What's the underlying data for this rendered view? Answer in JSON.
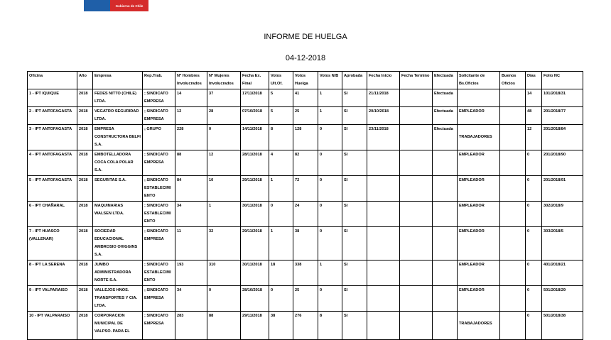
{
  "logo": {
    "text": "Gobierno de Chile",
    "colors": [
      "#1f5fa8",
      "#d52b2b"
    ]
  },
  "report": {
    "title": "INFORME DE HUELGA",
    "date": "04-12-2018"
  },
  "table": {
    "headers": [
      "Oficina",
      "Año",
      "Empresa",
      "Rep.Trab.",
      "Nº Hombres Involucrados",
      "Nº Mujeres Involucrados",
      "Fecha Ex. Final",
      "Votos Ult.Of.",
      "Votos Huelga",
      "Votos N/B",
      "Aprobada",
      "Fecha Inicio",
      "Fecha Termino",
      "Efectuada",
      "Solicitante de Bs.Oficios",
      "Buenos Oficios",
      "Días",
      "Folio NC"
    ],
    "rows": [
      [
        "1 - IPT IQUIQUE",
        "2018",
        "FEDES NITTO (CHILE) LTDA.",
        "; SINDICATO EMPRESA",
        "14",
        "37",
        "17/11/2018",
        "5",
        "41",
        "1",
        "SI",
        "21/11/2018",
        "",
        "Efectuada",
        "",
        "",
        "14",
        "101/2018/31"
      ],
      [
        "2 - IPT ANTOFAGASTA",
        "2018",
        "VEGATRO SEGURIDAD LTDA.",
        "; SINDICATO EMPRESA",
        "12",
        "28",
        "07/10/2018",
        "5",
        "25",
        "1",
        "SI",
        "20/10/2018",
        "",
        "Efectuada",
        "EMPLEADOR",
        "",
        "48",
        "201/2018/77"
      ],
      [
        "3 - IPT ANTOFAGASTA",
        "2018",
        "EMPRESA CONSTRUCTORA BELFI S.A.",
        "; GRUPO",
        "228",
        "0",
        "14/11/2018",
        "8",
        "128",
        "0",
        "SI",
        "23/11/2018",
        "",
        "Efectuada",
        "TRABAJADORES",
        "",
        "12",
        "201/2018/84"
      ],
      [
        "4 - IPT ANTOFAGASTA",
        "2018",
        "EMBOTELLADORA COCA COLA POLAR S.A.",
        "; SINDICATO EMPRESA",
        "88",
        "12",
        "28/11/2018",
        "4",
        "82",
        "0",
        "SI",
        "",
        "",
        "",
        "EMPLEADOR",
        "",
        "0",
        "201/2018/90"
      ],
      [
        "5 - IPT ANTOFAGASTA",
        "2018",
        "SEGURITAS S.A.",
        "; SINDICATO ESTABLECIMIENTO",
        "84",
        "10",
        "29/11/2018",
        "1",
        "72",
        "0",
        "SI",
        "",
        "",
        "",
        "EMPLEADOR",
        "",
        "0",
        "201/2018/91"
      ],
      [
        "6 - IPT CHAÑARAL",
        "2018",
        "MAQUINARIAS WALSEN LTDA.",
        "; SINDICATO ESTABLECIMIENTO",
        "34",
        "1",
        "30/11/2018",
        "0",
        "24",
        "0",
        "SI",
        "",
        "",
        "",
        "EMPLEADOR",
        "",
        "0",
        "302/2018/9"
      ],
      [
        "7 - IPT HUASCO (VALLENAR)",
        "2018",
        "SOCIEDAD EDUCACIONAL AMBROSIO OHIGGINS S.A.",
        "; SINDICATO EMPRESA",
        "11",
        "32",
        "29/11/2018",
        "1",
        "38",
        "0",
        "SI",
        "",
        "",
        "",
        "EMPLEADOR",
        "",
        "0",
        "303/2018/5"
      ],
      [
        "8 - IPT LA SERENA",
        "2018",
        "JUMBO ADMINISTRADORA NORTE S.A.",
        "; SINDICATO ESTABLECIMIENTO",
        "193",
        "310",
        "30/11/2018",
        "18",
        "338",
        "1",
        "SI",
        "",
        "",
        "",
        "EMPLEADOR",
        "",
        "0",
        "401/2018/21"
      ],
      [
        "9 - IPT VALPARAISO",
        "2018",
        "VALLEJOS HNOS. TRANSPORTES Y CIA. LTDA.",
        "; SINDICATO EMPRESA",
        "34",
        "0",
        "28/10/2018",
        "0",
        "25",
        "0",
        "SI",
        "",
        "",
        "",
        "EMPLEADOR",
        "",
        "0",
        "501/2018/29"
      ],
      [
        "10 - IPT VALPARAISO",
        "2018",
        "CORPORACION MUNICIPAL DE VALPSO. PARA EL",
        "; SINDICATO EMPRESA",
        "283",
        "88",
        "29/11/2018",
        "38",
        "276",
        "8",
        "SI",
        "",
        "",
        "",
        "TRABAJADORES",
        "",
        "0",
        "501/2018/38"
      ]
    ]
  }
}
